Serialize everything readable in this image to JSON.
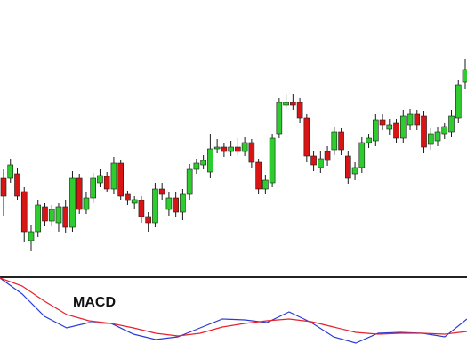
{
  "chart_data": [
    {
      "type": "candlestick",
      "up_color": "#2ecc2e",
      "down_color": "#d81414",
      "outline": "#1a1a1a",
      "ylim": [
        90,
        400
      ],
      "open": [
        200,
        200,
        205,
        185,
        130,
        140,
        168,
        152,
        150,
        168,
        145,
        200,
        165,
        178,
        195,
        202,
        188,
        217,
        182,
        172,
        175,
        157,
        150,
        188,
        165,
        178,
        162,
        182,
        210,
        215,
        207,
        233,
        235,
        230,
        235,
        230,
        240,
        218,
        188,
        195,
        250,
        282,
        285,
        285,
        268,
        225,
        212,
        230,
        232,
        252,
        225,
        205,
        212,
        240,
        242,
        265,
        255,
        262,
        245,
        260,
        272,
        270,
        238,
        242,
        250,
        252,
        268,
        308
      ],
      "close": [
        180,
        215,
        180,
        140,
        140,
        170,
        152,
        165,
        168,
        145,
        200,
        165,
        178,
        200,
        203,
        188,
        217,
        180,
        175,
        176,
        157,
        150,
        188,
        182,
        178,
        162,
        182,
        210,
        217,
        220,
        233,
        235,
        230,
        235,
        230,
        240,
        218,
        188,
        198,
        245,
        285,
        285,
        282,
        268,
        225,
        215,
        222,
        220,
        252,
        232,
        200,
        212,
        240,
        245,
        265,
        260,
        260,
        245,
        270,
        272,
        260,
        235,
        250,
        252,
        258,
        270,
        305,
        322
      ],
      "high": [
        210,
        222,
        212,
        190,
        148,
        176,
        172,
        170,
        172,
        175,
        208,
        205,
        184,
        206,
        210,
        207,
        224,
        220,
        186,
        180,
        180,
        162,
        195,
        195,
        185,
        184,
        188,
        216,
        222,
        226,
        250,
        244,
        240,
        242,
        245,
        246,
        244,
        222,
        204,
        250,
        290,
        295,
        295,
        290,
        272,
        230,
        230,
        236,
        258,
        256,
        230,
        218,
        246,
        250,
        272,
        272,
        266,
        266,
        276,
        278,
        276,
        275,
        256,
        258,
        262,
        276,
        310,
        334
      ],
      "low": [
        158,
        195,
        175,
        128,
        118,
        134,
        146,
        146,
        140,
        138,
        140,
        160,
        160,
        172,
        190,
        184,
        182,
        175,
        170,
        166,
        150,
        140,
        145,
        176,
        158,
        156,
        153,
        176,
        205,
        210,
        200,
        228,
        224,
        225,
        226,
        225,
        212,
        182,
        182,
        190,
        245,
        278,
        276,
        262,
        218,
        208,
        206,
        214,
        226,
        226,
        194,
        198,
        206,
        234,
        236,
        254,
        248,
        240,
        240,
        254,
        254,
        228,
        232,
        236,
        244,
        246,
        262,
        300
      ]
    },
    {
      "type": "line",
      "title": "MACD",
      "xlim": [
        0,
        525
      ],
      "ylim": [
        0,
        92
      ],
      "x": [
        0,
        25,
        50,
        75,
        100,
        125,
        150,
        175,
        200,
        225,
        250,
        275,
        300,
        325,
        350,
        375,
        400,
        425,
        450,
        475,
        500,
        525
      ],
      "series": [
        {
          "color": "#2b3bd6",
          "values": [
            92,
            74,
            49,
            36,
            42,
            41,
            29,
            23,
            26,
            36,
            46,
            45,
            42,
            54,
            42,
            26,
            19,
            30,
            31,
            30,
            26,
            46
          ]
        },
        {
          "color": "#e8202a",
          "values": [
            92,
            83,
            66,
            51,
            44,
            41,
            36,
            30,
            27,
            30,
            37,
            41,
            44,
            46,
            43,
            37,
            31,
            29,
            30,
            30,
            29,
            32
          ]
        }
      ]
    }
  ]
}
